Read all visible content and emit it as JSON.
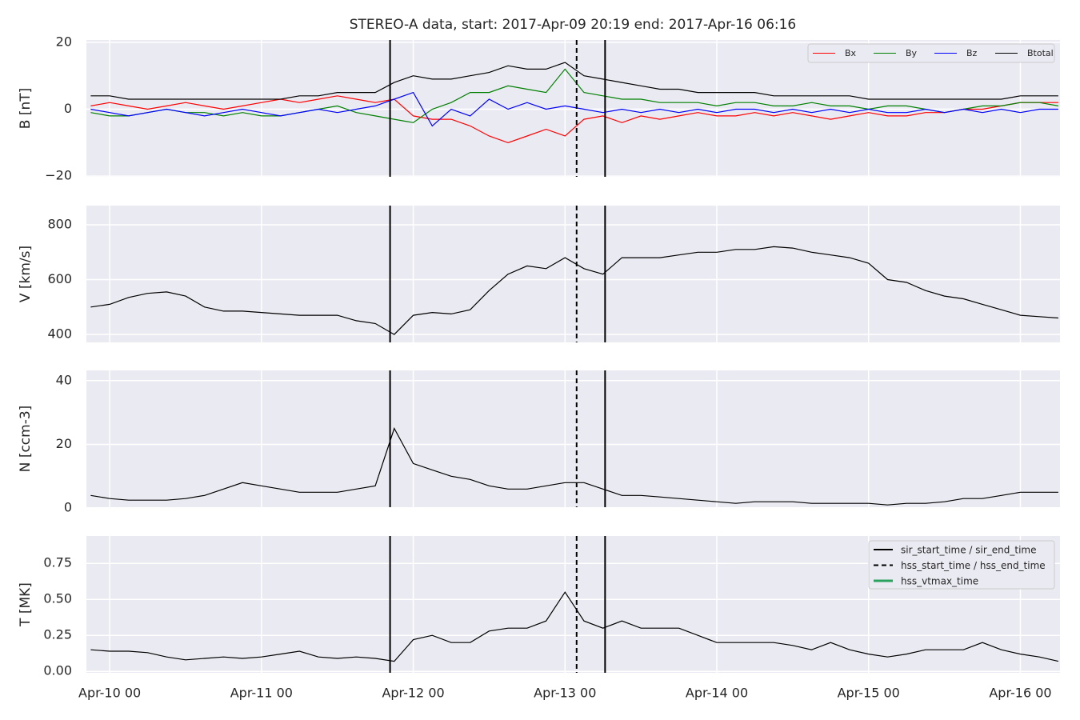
{
  "chart_data": [
    {
      "type": "line",
      "title": "STEREO-A data, start: 2017-Apr-09 20:19  end: 2017-Apr-16 06:16",
      "ylabel": "B [nT]",
      "x": [
        "Apr-09 21",
        "Apr-10 00",
        "Apr-10 03",
        "Apr-10 06",
        "Apr-10 09",
        "Apr-10 12",
        "Apr-10 15",
        "Apr-10 18",
        "Apr-10 21",
        "Apr-11 00",
        "Apr-11 03",
        "Apr-11 06",
        "Apr-11 09",
        "Apr-11 12",
        "Apr-11 15",
        "Apr-11 18",
        "Apr-11 21",
        "Apr-12 00",
        "Apr-12 03",
        "Apr-12 06",
        "Apr-12 09",
        "Apr-12 12",
        "Apr-12 15",
        "Apr-12 18",
        "Apr-12 21",
        "Apr-13 00",
        "Apr-13 03",
        "Apr-13 06",
        "Apr-13 09",
        "Apr-13 12",
        "Apr-13 15",
        "Apr-13 18",
        "Apr-13 21",
        "Apr-14 00",
        "Apr-14 03",
        "Apr-14 06",
        "Apr-14 09",
        "Apr-14 12",
        "Apr-14 15",
        "Apr-14 18",
        "Apr-14 21",
        "Apr-15 00",
        "Apr-15 03",
        "Apr-15 06",
        "Apr-15 09",
        "Apr-15 12",
        "Apr-15 15",
        "Apr-15 18",
        "Apr-15 21",
        "Apr-16 00",
        "Apr-16 03",
        "Apr-16 06"
      ],
      "ylim": [
        -20.2,
        20.7
      ],
      "yticks": [
        {
          "value": -20,
          "label": "−20"
        },
        0,
        20
      ],
      "grid": true,
      "legend": "upper right",
      "series": [
        {
          "name": "Bx",
          "color": "#ff0000",
          "values": [
            1,
            2,
            1,
            0,
            1,
            2,
            1,
            0,
            1,
            2,
            3,
            2,
            3,
            4,
            3,
            2,
            3,
            -2,
            -3,
            -3,
            -5,
            -8,
            -10,
            -8,
            -6,
            -8,
            -3,
            -2,
            -4,
            -2,
            -3,
            -2,
            -1,
            -2,
            -2,
            -1,
            -2,
            -1,
            -2,
            -3,
            -2,
            -1,
            -2,
            -2,
            -1,
            -1,
            0,
            0,
            1,
            2,
            2,
            2
          ]
        },
        {
          "name": "By",
          "color": "#008000",
          "values": [
            -1,
            -2,
            -2,
            -1,
            0,
            -1,
            -1,
            -2,
            -1,
            -2,
            -2,
            -1,
            0,
            1,
            -1,
            -2,
            -3,
            -4,
            0,
            2,
            5,
            5,
            7,
            6,
            5,
            12,
            5,
            4,
            3,
            3,
            2,
            2,
            2,
            1,
            2,
            2,
            1,
            1,
            2,
            1,
            1,
            0,
            1,
            1,
            0,
            -1,
            0,
            1,
            1,
            2,
            2,
            1
          ]
        },
        {
          "name": "Bz",
          "color": "#0000ff",
          "values": [
            0,
            -1,
            -2,
            -1,
            0,
            -1,
            -2,
            -1,
            0,
            -1,
            -2,
            -1,
            0,
            -1,
            0,
            1,
            3,
            5,
            -5,
            0,
            -2,
            3,
            0,
            2,
            0,
            1,
            0,
            -1,
            0,
            -1,
            0,
            -1,
            0,
            -1,
            0,
            0,
            -1,
            0,
            -1,
            0,
            -1,
            0,
            -1,
            -1,
            0,
            -1,
            0,
            -1,
            0,
            -1,
            0,
            0
          ]
        },
        {
          "name": "Btotal",
          "color": "#000000",
          "values": [
            4,
            4,
            3,
            3,
            3,
            3,
            3,
            3,
            3,
            3,
            3,
            4,
            4,
            5,
            5,
            5,
            8,
            10,
            9,
            9,
            10,
            11,
            13,
            12,
            12,
            14,
            10,
            9,
            8,
            7,
            6,
            6,
            5,
            5,
            5,
            5,
            4,
            4,
            4,
            4,
            4,
            3,
            3,
            3,
            3,
            3,
            3,
            3,
            3,
            4,
            4,
            4
          ]
        }
      ]
    },
    {
      "type": "line",
      "ylabel": "V [km/s]",
      "ylim": [
        371,
        870
      ],
      "yticks": [
        400,
        600,
        800
      ],
      "grid": true,
      "series": [
        {
          "color": "#000000",
          "values": [
            500,
            510,
            535,
            550,
            555,
            540,
            500,
            485,
            485,
            480,
            475,
            470,
            470,
            470,
            450,
            440,
            400,
            470,
            480,
            475,
            490,
            560,
            620,
            650,
            640,
            680,
            640,
            620,
            680,
            680,
            680,
            690,
            700,
            700,
            710,
            710,
            720,
            715,
            700,
            690,
            680,
            660,
            600,
            590,
            560,
            540,
            530,
            510,
            490,
            470,
            465,
            460
          ]
        }
      ]
    },
    {
      "type": "line",
      "ylabel": "N [ccm-3]",
      "ylim": [
        0.3,
        43.2
      ],
      "yticks": [
        0,
        20,
        40
      ],
      "grid": true,
      "series": [
        {
          "color": "#000000",
          "values": [
            4,
            3,
            2.5,
            2.5,
            2.5,
            3,
            4,
            6,
            8,
            7,
            6,
            5,
            5,
            5,
            6,
            7,
            25,
            14,
            12,
            10,
            9,
            7,
            6,
            6,
            7,
            8,
            8,
            6,
            4,
            4,
            3.5,
            3,
            2.5,
            2,
            1.5,
            2,
            2,
            2,
            1.5,
            1.5,
            1.5,
            1.5,
            1,
            1.5,
            1.5,
            2,
            3,
            3,
            4,
            5,
            5,
            5
          ]
        }
      ]
    },
    {
      "type": "line",
      "ylabel": "T [MK]",
      "ylim": [
        -0.01,
        0.94
      ],
      "yticks": [
        {
          "value": 0,
          "label": "0.00"
        },
        {
          "value": 0.25,
          "label": "0.25"
        },
        {
          "value": 0.5,
          "label": "0.50"
        },
        {
          "value": 0.75,
          "label": "0.75"
        }
      ],
      "grid": true,
      "legend": "upper right",
      "xlim": [
        "Apr-09 20:19",
        "Apr-16 06:16"
      ],
      "xticks": [
        "Apr-10 00",
        "Apr-11 00",
        "Apr-12 00",
        "Apr-13 00",
        "Apr-14 00",
        "Apr-15 00",
        "Apr-16 00"
      ],
      "series": [
        {
          "color": "#000000",
          "values": [
            0.15,
            0.14,
            0.14,
            0.13,
            0.1,
            0.08,
            0.09,
            0.1,
            0.09,
            0.1,
            0.12,
            0.14,
            0.1,
            0.09,
            0.1,
            0.09,
            0.07,
            0.22,
            0.25,
            0.2,
            0.2,
            0.28,
            0.3,
            0.3,
            0.35,
            0.55,
            0.35,
            0.3,
            0.35,
            0.3,
            0.3,
            0.3,
            0.25,
            0.2,
            0.2,
            0.2,
            0.2,
            0.18,
            0.15,
            0.2,
            0.15,
            0.12,
            0.1,
            0.12,
            0.15,
            0.15,
            0.15,
            0.2,
            0.15,
            0.12,
            0.1,
            0.07
          ]
        }
      ],
      "events": [
        {
          "name": "sir_start_time / sir_end_time",
          "color": "#000000",
          "style": "solid",
          "times": [
            "Apr-11 20:20",
            "Apr-13 06:20"
          ]
        },
        {
          "name": "hss_start_time / hss_end_time",
          "color": "#000000",
          "style": "dashed",
          "times": [
            "Apr-13 01:50"
          ]
        },
        {
          "name": "hss_vtmax_time",
          "color": "#2ca25f",
          "style": "solid",
          "times": []
        }
      ]
    }
  ]
}
